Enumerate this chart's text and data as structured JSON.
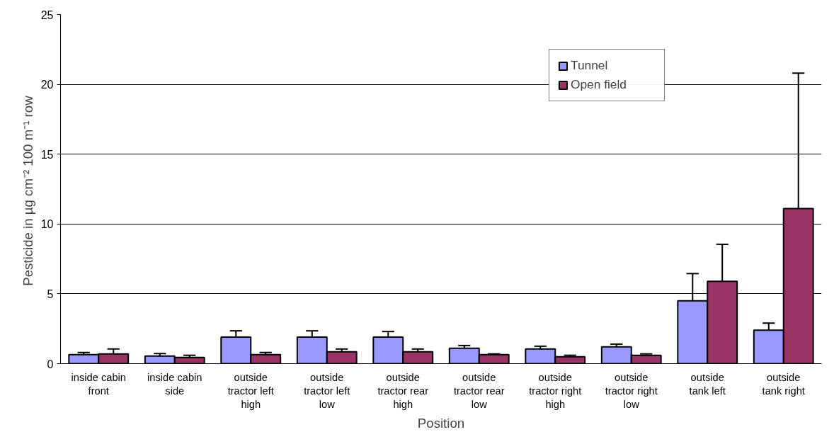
{
  "chart_data": {
    "type": "bar",
    "xlabel": "Position",
    "ylabel": "Pesticide in  µg cm⁻² 100 m⁻¹ row",
    "categories": [
      "inside cabin\nfront",
      "inside cabin\nside",
      "outside\ntractor left\nhigh",
      "outside\ntractor left\nlow",
      "outside\ntractor rear\nhigh",
      "outside\ntractor rear\nlow",
      "outside\ntractor right\nhigh",
      "outside\ntractor right\nlow",
      "outside\ntank left",
      "outside\ntank right"
    ],
    "series": [
      {
        "name": "Tunnel",
        "color": "#9999ff",
        "values": [
          0.65,
          0.55,
          1.9,
          1.9,
          1.9,
          1.1,
          1.05,
          1.2,
          4.5,
          2.4
        ],
        "errors": [
          [
            0.65,
            0.8
          ],
          [
            0.55,
            0.72
          ],
          [
            1.9,
            2.35
          ],
          [
            1.9,
            2.35
          ],
          [
            1.9,
            2.3
          ],
          [
            1.1,
            1.3
          ],
          [
            1.05,
            1.25
          ],
          [
            1.2,
            1.4
          ],
          [
            4.5,
            6.45
          ],
          [
            2.4,
            2.9
          ]
        ]
      },
      {
        "name": "Open field",
        "color": "#993366",
        "values": [
          0.7,
          0.45,
          0.65,
          0.85,
          0.85,
          0.65,
          0.5,
          0.6,
          5.9,
          11.1
        ],
        "errors": [
          [
            0.7,
            1.05
          ],
          [
            0.45,
            0.6
          ],
          [
            0.65,
            0.8
          ],
          [
            0.85,
            1.05
          ],
          [
            0.85,
            1.05
          ],
          [
            0.65,
            0.7
          ],
          [
            0.5,
            0.6
          ],
          [
            0.6,
            0.7
          ],
          [
            5.9,
            8.55
          ],
          [
            11.1,
            20.8
          ]
        ]
      }
    ],
    "ylim": [
      0,
      25
    ],
    "yticks": [
      0,
      5,
      10,
      15,
      20,
      25
    ],
    "grid": "y",
    "legend": "top right"
  }
}
